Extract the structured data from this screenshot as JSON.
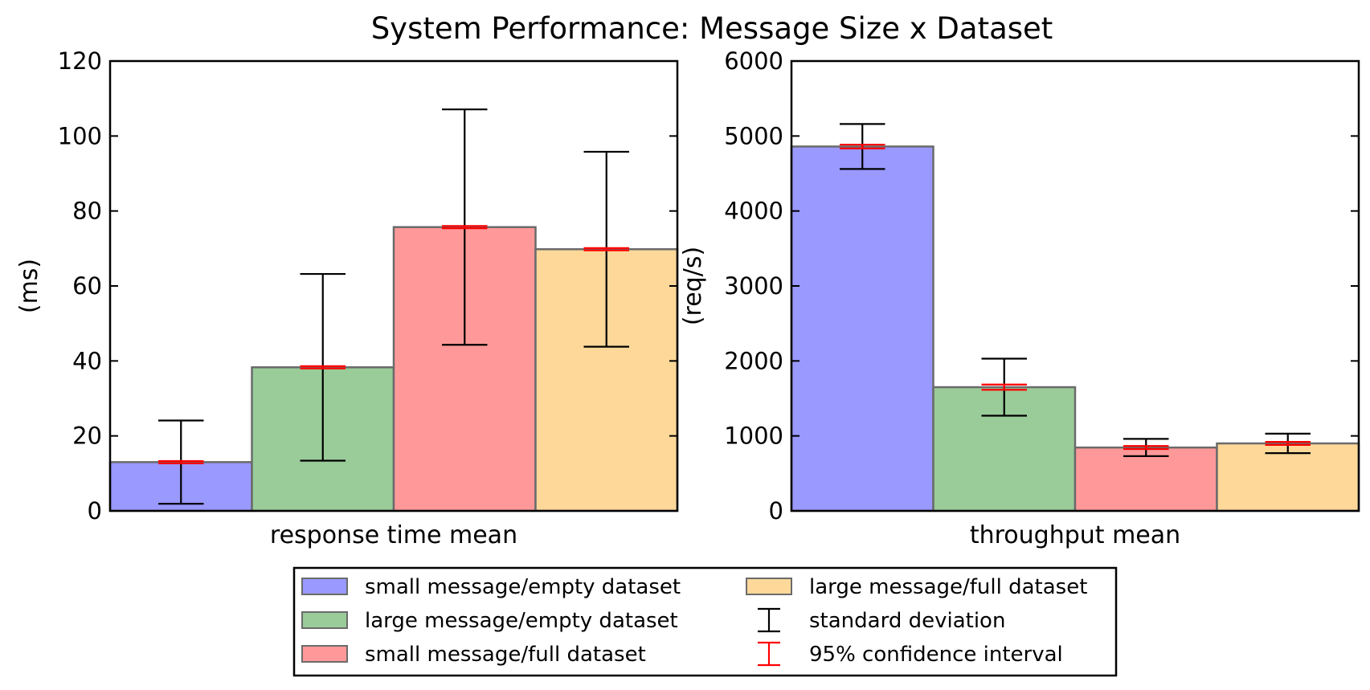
{
  "chart_data": {
    "type": "bar",
    "title": "System Performance: Message Size x Dataset",
    "series_colors": [
      "#9999ff",
      "#99cc99",
      "#ff9999",
      "#fdd899"
    ],
    "series": [
      {
        "name": "small message/empty dataset"
      },
      {
        "name": "large message/empty dataset"
      },
      {
        "name": "small message/full dataset"
      },
      {
        "name": "large message/full dataset"
      }
    ],
    "error_labels": {
      "std": "standard deviation",
      "ci": "95% confidence interval"
    },
    "error_colors": {
      "std": "#000000",
      "ci": "#ff0000"
    },
    "legend_position": "bottom-center",
    "grid": false,
    "panels": [
      {
        "xlabel": "response time mean",
        "ylabel": "(ms)",
        "ylim": [
          0,
          120
        ],
        "yticks": [
          0,
          20,
          40,
          60,
          80,
          100,
          120
        ],
        "ytick_labels": [
          "0",
          "20",
          "40",
          "60",
          "80",
          "100",
          "120"
        ],
        "values": [
          13,
          38.3,
          75.7,
          69.8
        ],
        "std": [
          11.1,
          24.9,
          31.4,
          26.0
        ],
        "ci": [
          0.3,
          0.3,
          0.3,
          0.3
        ]
      },
      {
        "xlabel": "throughput mean",
        "ylabel": "(req/s)",
        "ylim": [
          0,
          6000
        ],
        "yticks": [
          0,
          1000,
          2000,
          3000,
          4000,
          5000,
          6000
        ],
        "ytick_labels": [
          "0",
          "1000",
          "2000",
          "3000",
          "4000",
          "5000",
          "6000"
        ],
        "values": [
          4860,
          1650,
          845,
          900
        ],
        "std": [
          300,
          380,
          115,
          130
        ],
        "ci": [
          25,
          35,
          20,
          20
        ]
      }
    ]
  }
}
